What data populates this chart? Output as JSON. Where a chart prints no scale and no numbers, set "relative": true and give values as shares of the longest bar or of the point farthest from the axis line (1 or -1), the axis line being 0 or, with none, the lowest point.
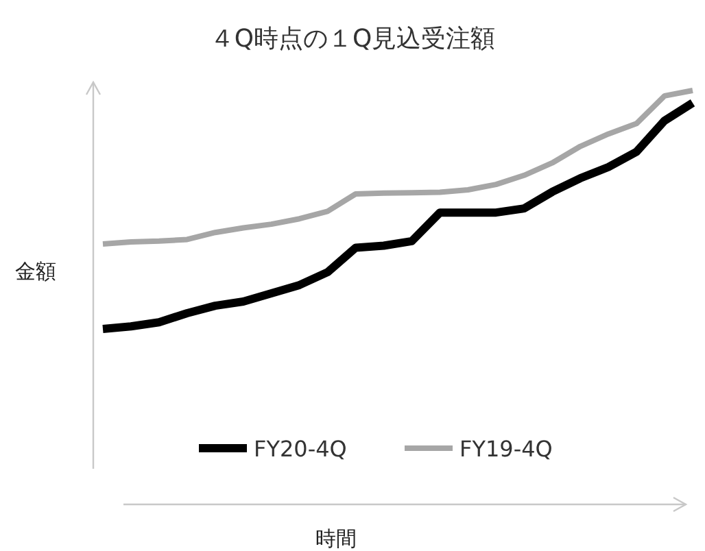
{
  "chart_data": {
    "type": "line",
    "title": "４Q時点の１Q見込受注額",
    "xlabel": "時間",
    "ylabel": "金額",
    "relative": true,
    "legend": "bottom",
    "categories": [
      null,
      null,
      null,
      null,
      null,
      null,
      null,
      null,
      null,
      null,
      null,
      null,
      null,
      null,
      null,
      null,
      null,
      null,
      null,
      null,
      null,
      null
    ],
    "series": [
      {
        "name": "FY20-4Q",
        "color": "#000000",
        "values": [
          0.424,
          0.43,
          0.44,
          0.462,
          0.48,
          0.49,
          0.51,
          0.53,
          0.561,
          0.62,
          0.625,
          0.636,
          0.705,
          0.705,
          0.705,
          0.715,
          0.755,
          0.788,
          0.815,
          0.852,
          0.927,
          0.97
        ]
      },
      {
        "name": "FY19-4Q",
        "color": "#a6a6a6",
        "values": [
          0.629,
          0.634,
          0.636,
          0.64,
          0.657,
          0.668,
          0.677,
          0.69,
          0.708,
          0.75,
          0.752,
          0.753,
          0.754,
          0.76,
          0.773,
          0.795,
          0.825,
          0.865,
          0.895,
          0.92,
          0.987,
          1
        ]
      }
    ]
  }
}
